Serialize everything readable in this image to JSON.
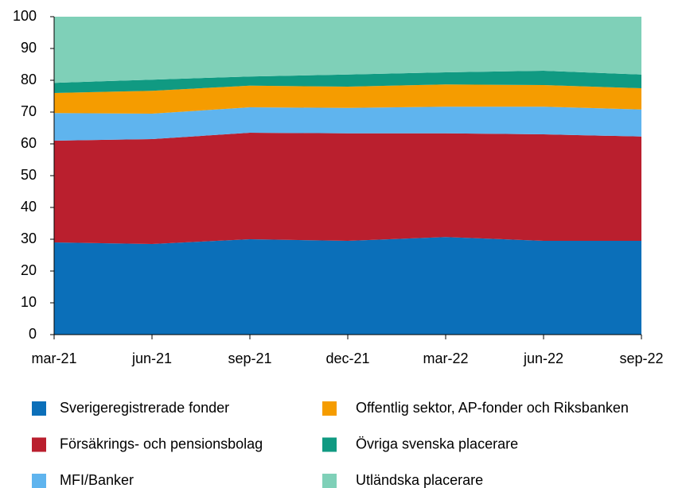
{
  "chart_data": {
    "type": "stacked_area",
    "categories": [
      "mar-21",
      "jun-21",
      "sep-21",
      "dec-21",
      "mar-22",
      "jun-22",
      "sep-22"
    ],
    "ylim": [
      0,
      100
    ],
    "yticks": [
      0,
      10,
      20,
      30,
      40,
      50,
      60,
      70,
      80,
      90,
      100
    ],
    "series": [
      {
        "name": "Sverigeregistrerade fonder",
        "color": "#0b6fb9",
        "values": [
          29,
          28.5,
          30,
          29.5,
          30.7,
          29.5,
          29.5
        ]
      },
      {
        "name": "Försäkrings- och pensionsbolag",
        "color": "#ba1f2e",
        "values": [
          32,
          33,
          33.5,
          33.8,
          32.6,
          33.5,
          32.8
        ]
      },
      {
        "name": "MFI/Banker",
        "color": "#5fb4ee",
        "values": [
          8.7,
          8,
          8,
          8,
          8.4,
          8.7,
          8.5
        ]
      },
      {
        "name": "Offentlig sektor, AP-fonder och Riksbanken",
        "color": "#f59c00",
        "values": [
          6.3,
          7.2,
          6.8,
          6.7,
          7,
          6.8,
          6.7
        ]
      },
      {
        "name": "Övriga svenska placerare",
        "color": "#109a82",
        "values": [
          3.2,
          3.5,
          2.9,
          3.8,
          3.8,
          4.5,
          4.3
        ]
      },
      {
        "name": "Utländska placerare",
        "color": "#7fd0b8",
        "values": [
          20.8,
          19.8,
          18.8,
          18.2,
          17.5,
          17,
          18.2
        ]
      }
    ]
  }
}
